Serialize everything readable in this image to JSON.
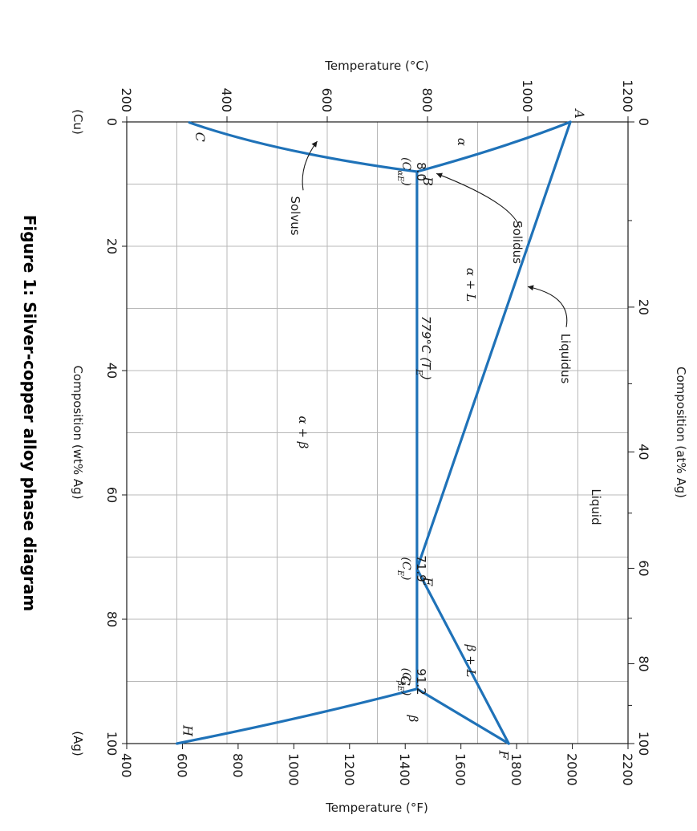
{
  "figure": {
    "caption": "Figure 1: Silver-copper alloy phase diagram",
    "left_end_label": "(Cu)",
    "right_end_label": "(Ag)"
  },
  "chart_data": {
    "type": "line",
    "title": "",
    "xlabel": "Composition (wt% Ag)",
    "x2label": "Composition (at% Ag)",
    "ylabel": "Temperature (°C)",
    "y2label": "Temperature (°F)",
    "xlim": [
      0,
      100
    ],
    "ylim": [
      200,
      1200
    ],
    "y2lim": [
      400,
      2200
    ],
    "grid": true,
    "rotation": "rotated 90° clockwise",
    "x_ticks": [
      "0",
      "20",
      "40",
      "60",
      "80",
      "100"
    ],
    "x2_ticks": [
      "0",
      "20",
      "40",
      "60",
      "80",
      "100"
    ],
    "y_ticks": [
      "200",
      "400",
      "600",
      "800",
      "1000",
      "1200"
    ],
    "y2_ticks": [
      "400",
      "600",
      "800",
      "1000",
      "1200",
      "1400",
      "1600",
      "1800",
      "2000",
      "2200"
    ],
    "series": [
      {
        "name": "Liquidus",
        "points": [
          [
            0,
            1085
          ],
          [
            71.9,
            779
          ],
          [
            100,
            962
          ]
        ]
      },
      {
        "name": "Solidus",
        "points": [
          [
            0,
            1085
          ],
          [
            4,
            960
          ],
          [
            8,
            779
          ],
          [
            100,
            962
          ],
          [
            91.2,
            779
          ]
        ]
      },
      {
        "name": "Solvus",
        "points": [
          [
            8,
            779
          ],
          [
            5,
            500
          ],
          [
            0.1,
            325
          ],
          [
            91.2,
            779
          ],
          [
            96,
            550
          ],
          [
            100,
            300
          ]
        ]
      }
    ],
    "eutectic_line": {
      "from": 8.0,
      "to": 91.2,
      "temperature": 779
    },
    "points": [
      {
        "label": "A",
        "x": 0,
        "y": 1085
      },
      {
        "label": "B",
        "x": 8.0,
        "y": 779
      },
      {
        "label": "C",
        "x": 0.1,
        "y": 325
      },
      {
        "label": "E",
        "x": 71.9,
        "y": 779
      },
      {
        "label": "F",
        "x": 100,
        "y": 962
      },
      {
        "label": "G",
        "x": 91.2,
        "y": 779
      },
      {
        "label": "H",
        "x": 100,
        "y": 300
      }
    ],
    "annotations": {
      "solidus": "Solidus",
      "liquidus": "Liquidus",
      "solvus": "Solvus",
      "liquid": "Liquid",
      "alpha": "α",
      "beta": "β",
      "alpha_l": "α + L",
      "beta_l": "β + L",
      "alpha_beta": "α + β",
      "eutectic_temp": "779°C (T",
      "eutectic_temp_sub": "E",
      "eutectic_temp_close": ")",
      "c_alpha_e_value": "8.0",
      "c_alpha_e": "(C",
      "c_alpha_e_sub": "αE",
      "c_alpha_e_close": ")",
      "c_e_value": "71.9",
      "c_e": "(C",
      "c_e_sub": "E",
      "c_e_close": ")",
      "c_beta_e_value": "91.2",
      "c_beta_e": "(C",
      "c_beta_e_sub": "βE",
      "c_beta_e_close": ")"
    },
    "colors": {
      "phase_lines": "#1f72b8",
      "grid": "#b8b8b8"
    }
  }
}
